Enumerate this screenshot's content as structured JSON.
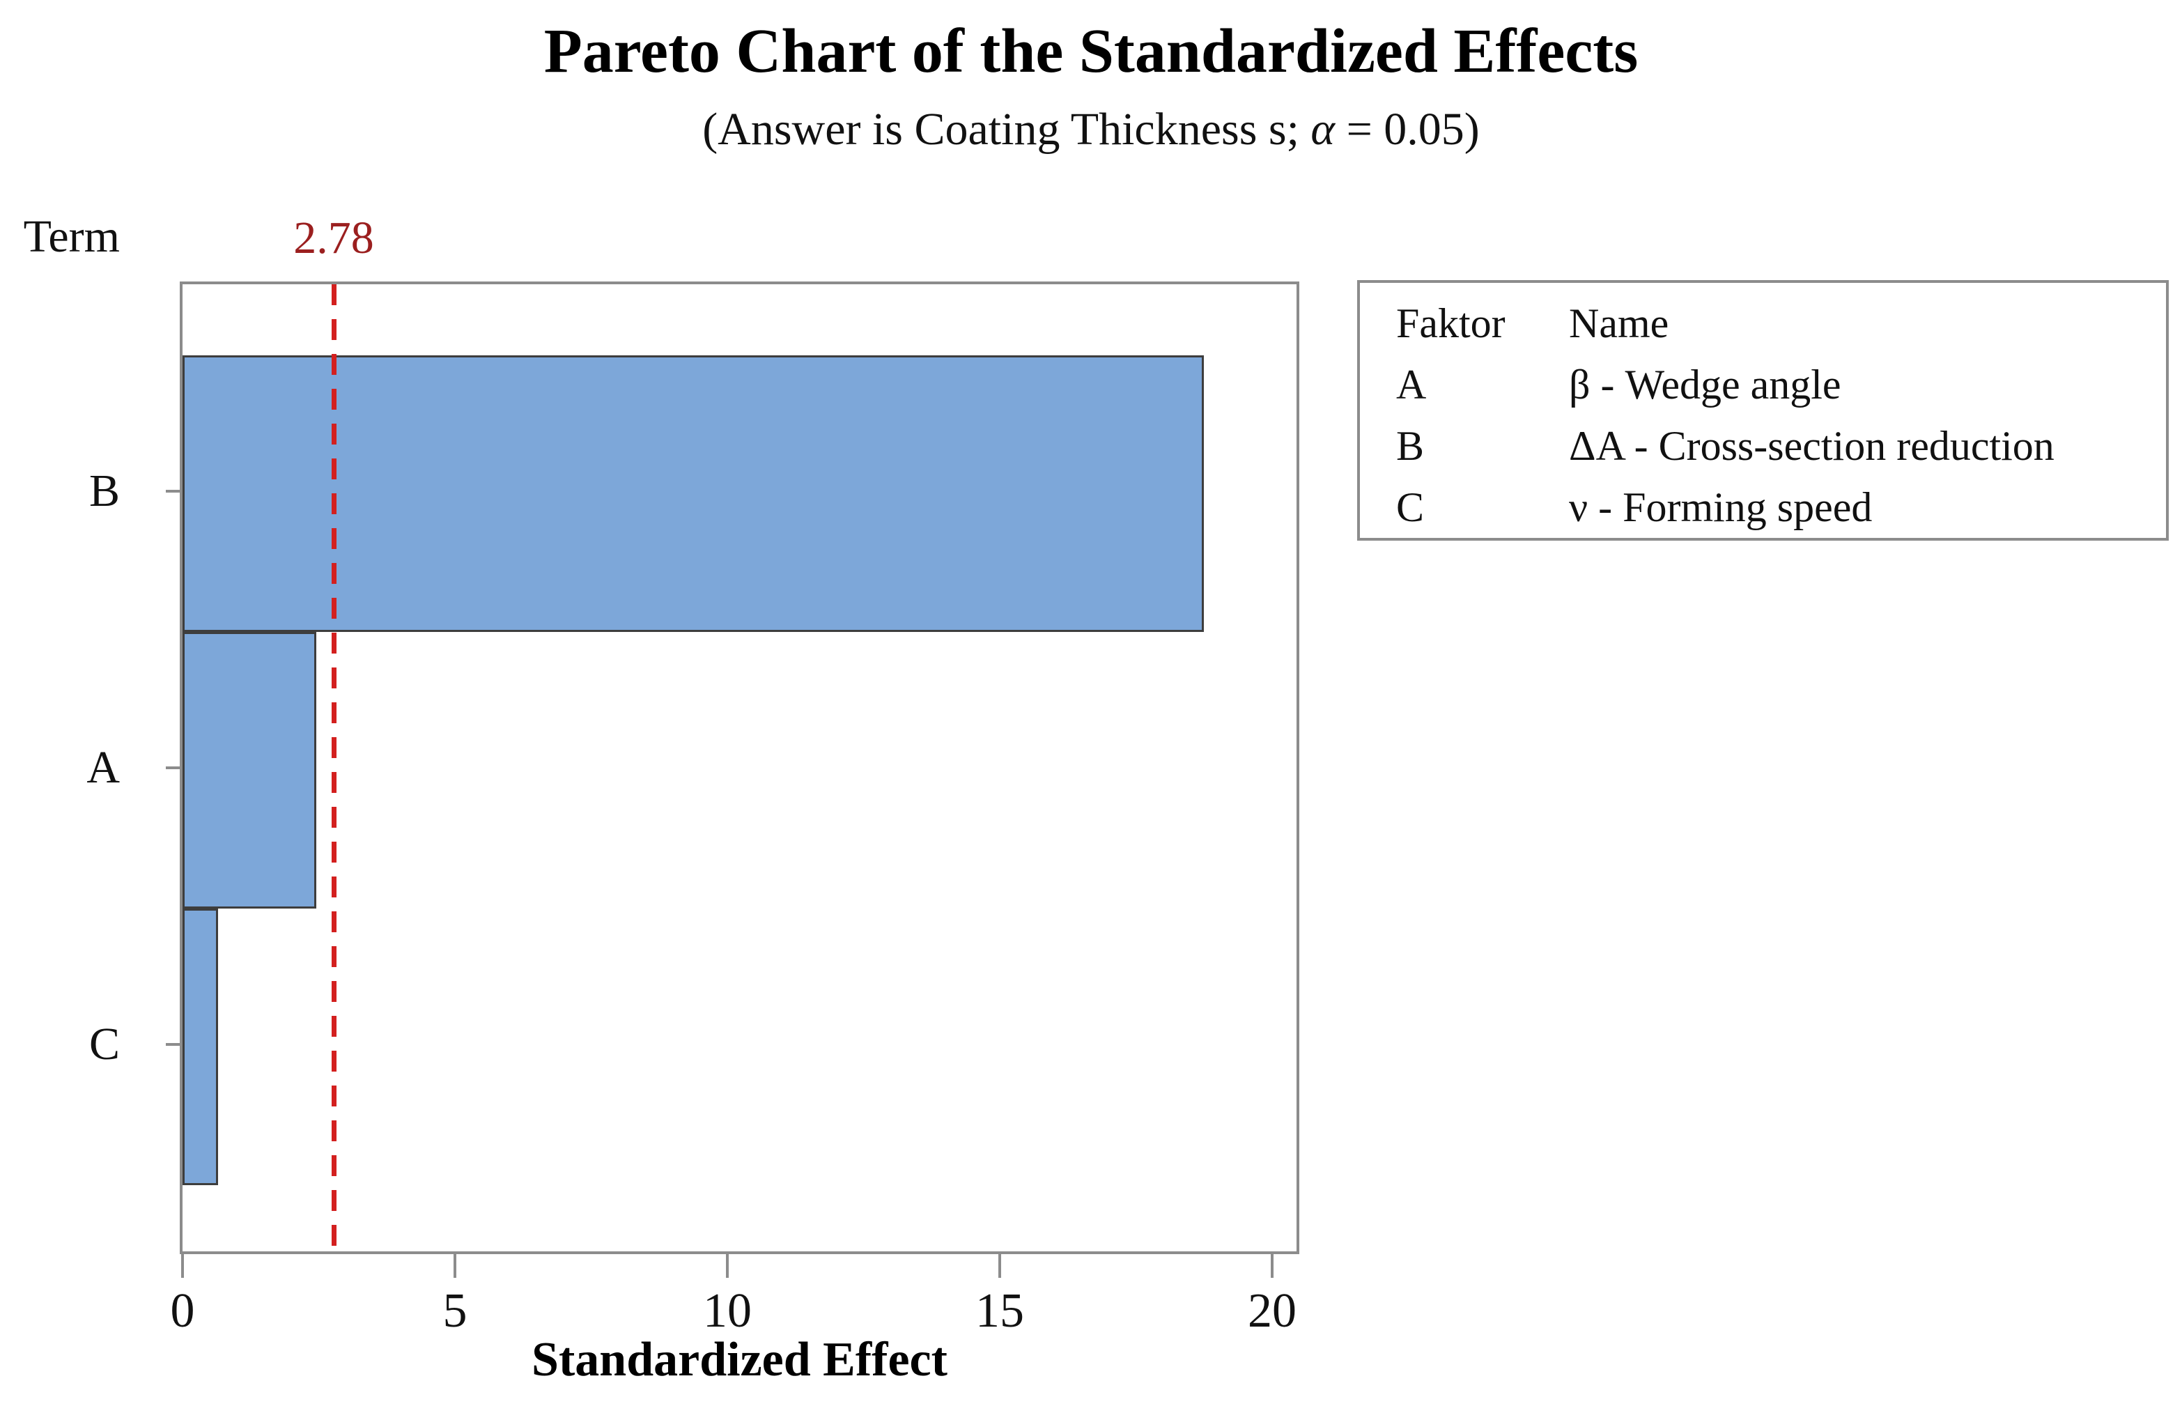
{
  "title": "Pareto Chart of the Standardized Effects",
  "subtitle": {
    "prefix": "(Answer is Coating Thickness s; ",
    "alpha_symbol": "α",
    "suffix": " = 0.05)"
  },
  "term_label": "Term",
  "reference_line": {
    "label": "2.78",
    "value": 2.78,
    "line_color": "#d3201f",
    "label_color": "#9b1f1f"
  },
  "axis": {
    "x_label": "Standardized Effect",
    "x_ticks": [
      0,
      5,
      10,
      15,
      20
    ],
    "y_categories": [
      "B",
      "A",
      "C"
    ]
  },
  "legend": {
    "headers": [
      "Faktor",
      "Name"
    ],
    "rows": [
      [
        "A",
        "β - Wedge angle"
      ],
      [
        "B",
        "ΔA - Cross-section reduction"
      ],
      [
        "C",
        "ν - Forming speed"
      ]
    ]
  },
  "chart_data": {
    "type": "bar",
    "orientation": "horizontal",
    "title": "Pareto Chart of the Standardized Effects",
    "subtitle": "(Answer is Coating Thickness s; α = 0.05)",
    "xlabel": "Standardized Effect",
    "ylabel": "Term",
    "categories": [
      "B",
      "A",
      "C"
    ],
    "values": [
      18.7,
      2.4,
      0.6
    ],
    "reference_line": 2.78,
    "xlim": [
      0,
      20
    ],
    "x_ticks": [
      0,
      5,
      10,
      15,
      20
    ],
    "grid": false,
    "bar_color": "#7da7d9",
    "bar_border_color": "#3d3d3d",
    "frame_color": "#8c8c8c",
    "legend_position": "outside-right",
    "legend": {
      "headers": [
        "Faktor",
        "Name"
      ],
      "rows": [
        [
          "A",
          "β - Wedge angle"
        ],
        [
          "B",
          "ΔA - Cross-section reduction"
        ],
        [
          "C",
          "ν - Forming speed"
        ]
      ]
    }
  }
}
